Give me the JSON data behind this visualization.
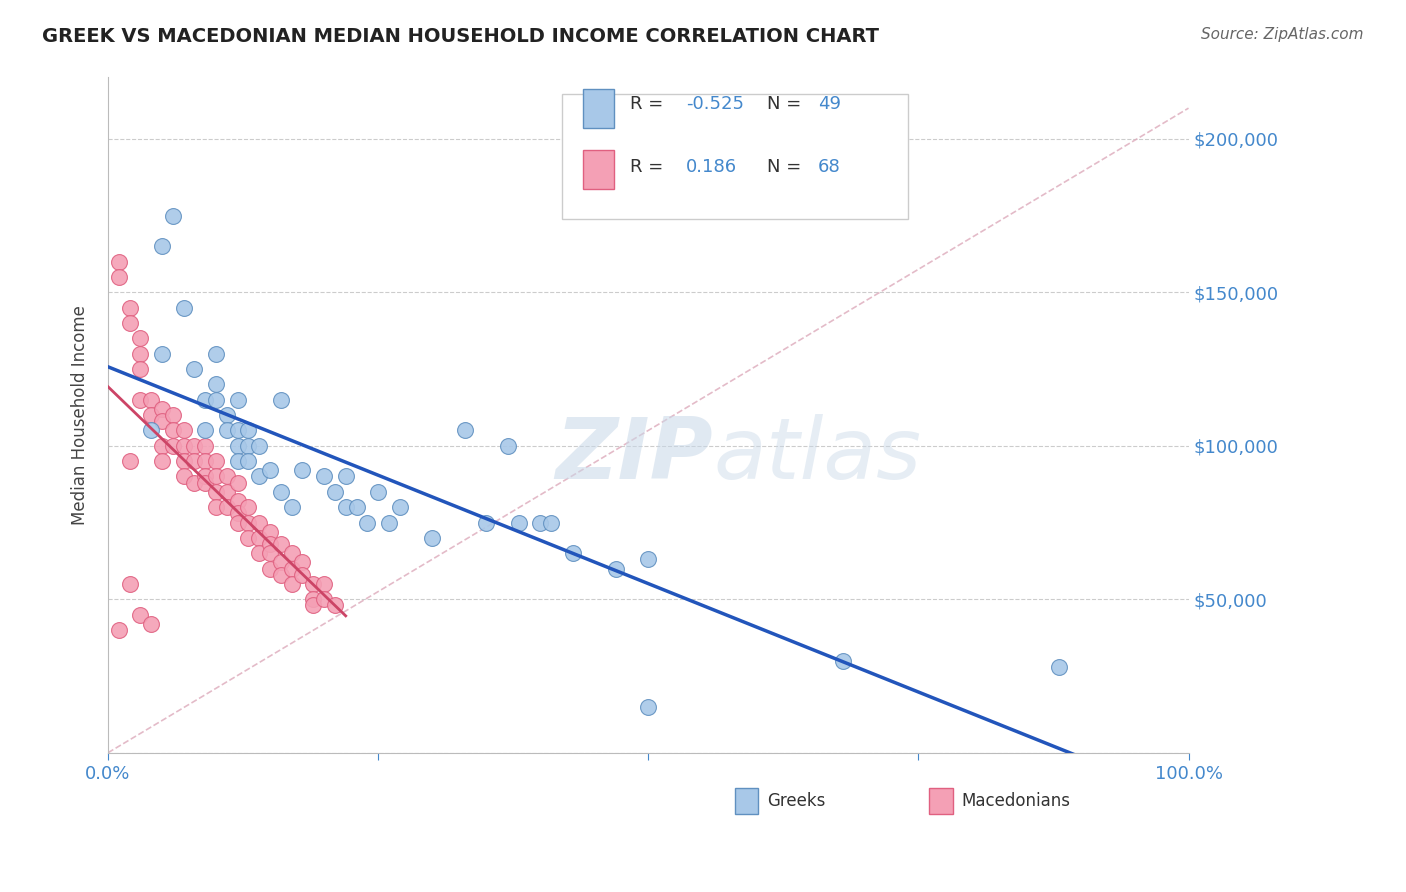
{
  "title": "GREEK VS MACEDONIAN MEDIAN HOUSEHOLD INCOME CORRELATION CHART",
  "source_text": "Source: ZipAtlas.com",
  "watermark_zip": "ZIP",
  "watermark_atlas": "atlas",
  "xlabel": "",
  "ylabel": "Median Household Income",
  "xlim": [
    0.0,
    1.0
  ],
  "ylim": [
    0,
    220000
  ],
  "yticks": [
    0,
    50000,
    100000,
    150000,
    200000
  ],
  "ytick_labels": [
    "",
    "$50,000",
    "$100,000",
    "$150,000",
    "$200,000"
  ],
  "xticks": [
    0.0,
    0.25,
    0.5,
    0.75,
    1.0
  ],
  "xtick_labels": [
    "0.0%",
    "",
    "",
    "",
    "100.0%"
  ],
  "greek_R": -0.525,
  "greek_N": 49,
  "mac_R": 0.186,
  "mac_N": 68,
  "greek_color": "#a8c8e8",
  "mac_color": "#f4a0b5",
  "greek_edge_color": "#6090c0",
  "mac_edge_color": "#e06080",
  "trend_blue": "#2255bb",
  "trend_pink": "#cc4466",
  "diag_color": "#ddaabb",
  "background_color": "#ffffff",
  "grid_color": "#cccccc",
  "title_color": "#222222",
  "label_color": "#4488cc",
  "greek_x": [
    0.04,
    0.05,
    0.05,
    0.06,
    0.07,
    0.08,
    0.09,
    0.09,
    0.1,
    0.1,
    0.1,
    0.11,
    0.11,
    0.12,
    0.12,
    0.12,
    0.12,
    0.13,
    0.13,
    0.13,
    0.14,
    0.14,
    0.15,
    0.16,
    0.16,
    0.17,
    0.18,
    0.2,
    0.21,
    0.22,
    0.22,
    0.23,
    0.24,
    0.25,
    0.26,
    0.27,
    0.3,
    0.33,
    0.35,
    0.37,
    0.38,
    0.4,
    0.41,
    0.43,
    0.47,
    0.5,
    0.68,
    0.5,
    0.88
  ],
  "greek_y": [
    105000,
    130000,
    165000,
    175000,
    145000,
    125000,
    105000,
    115000,
    115000,
    120000,
    130000,
    110000,
    105000,
    105000,
    100000,
    95000,
    115000,
    100000,
    95000,
    105000,
    90000,
    100000,
    92000,
    85000,
    115000,
    80000,
    92000,
    90000,
    85000,
    90000,
    80000,
    80000,
    75000,
    85000,
    75000,
    80000,
    70000,
    105000,
    75000,
    100000,
    75000,
    75000,
    75000,
    65000,
    60000,
    63000,
    30000,
    15000,
    28000
  ],
  "mac_x": [
    0.01,
    0.01,
    0.02,
    0.02,
    0.02,
    0.03,
    0.03,
    0.03,
    0.03,
    0.04,
    0.04,
    0.05,
    0.05,
    0.05,
    0.05,
    0.06,
    0.06,
    0.06,
    0.07,
    0.07,
    0.07,
    0.07,
    0.08,
    0.08,
    0.08,
    0.09,
    0.09,
    0.09,
    0.09,
    0.1,
    0.1,
    0.1,
    0.1,
    0.11,
    0.11,
    0.11,
    0.12,
    0.12,
    0.12,
    0.12,
    0.13,
    0.13,
    0.13,
    0.14,
    0.14,
    0.14,
    0.15,
    0.15,
    0.15,
    0.15,
    0.16,
    0.16,
    0.16,
    0.17,
    0.17,
    0.17,
    0.18,
    0.18,
    0.19,
    0.19,
    0.19,
    0.2,
    0.2,
    0.21,
    0.02,
    0.03,
    0.04,
    0.01
  ],
  "mac_y": [
    160000,
    155000,
    145000,
    140000,
    95000,
    135000,
    130000,
    125000,
    115000,
    115000,
    110000,
    112000,
    108000,
    100000,
    95000,
    110000,
    105000,
    100000,
    105000,
    100000,
    95000,
    90000,
    100000,
    95000,
    88000,
    100000,
    95000,
    90000,
    88000,
    95000,
    90000,
    85000,
    80000,
    90000,
    85000,
    80000,
    88000,
    82000,
    78000,
    75000,
    80000,
    75000,
    70000,
    75000,
    70000,
    65000,
    72000,
    68000,
    65000,
    60000,
    68000,
    62000,
    58000,
    65000,
    60000,
    55000,
    62000,
    58000,
    55000,
    50000,
    48000,
    55000,
    50000,
    48000,
    55000,
    45000,
    42000,
    40000
  ]
}
